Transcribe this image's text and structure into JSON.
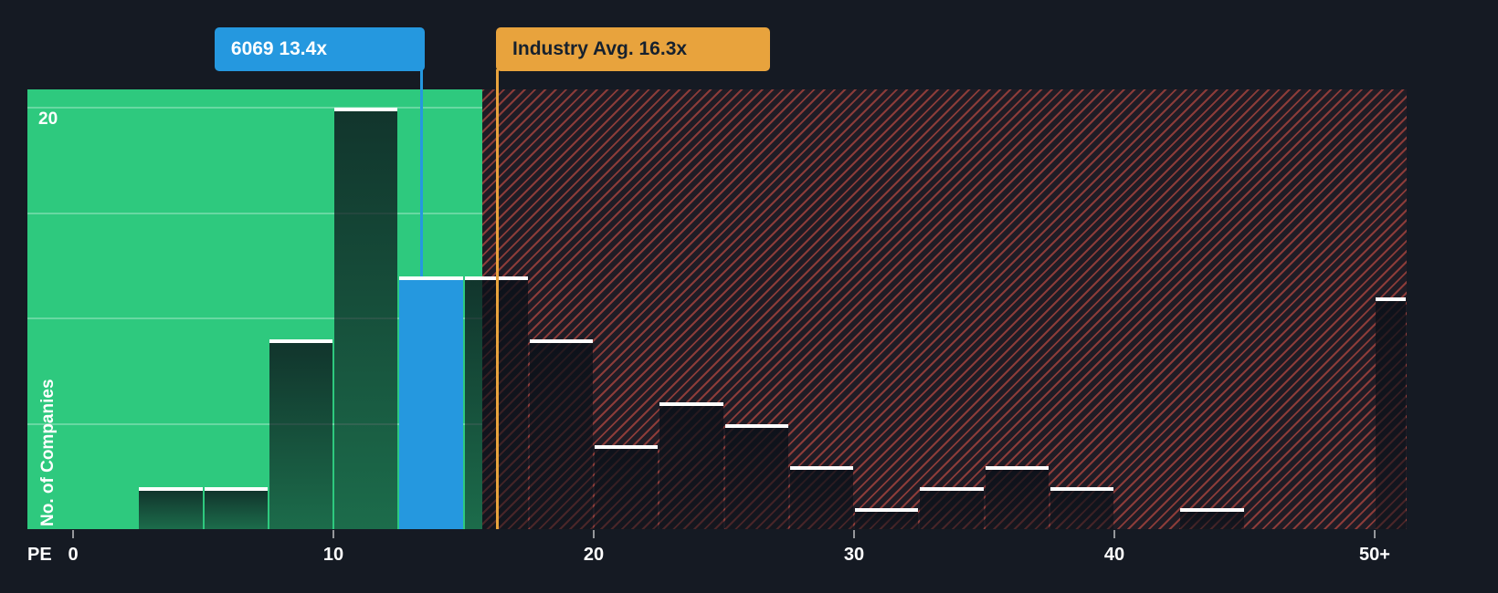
{
  "colors": {
    "background": "#151A23",
    "undervalued_green": "#2EC97E",
    "company_blue": "#2598DF",
    "industry_orange": "#E8A33D",
    "hatch_red": "#E4564A",
    "bar_top_line": "#FFFFFF",
    "tooltip_dark_text": "#16212E"
  },
  "chart_data": {
    "type": "bar",
    "xlabel": "PE",
    "ylabel": "No. of Companies",
    "x_ticks": [
      "0",
      "10",
      "20",
      "30",
      "40",
      "50+"
    ],
    "x_tick_values": [
      0,
      10,
      20,
      30,
      40,
      50
    ],
    "y_max_label": "20",
    "y_gridlines": [
      5,
      10,
      15,
      20
    ],
    "ylim": [
      0,
      21
    ],
    "xlim": [
      0,
      51
    ],
    "bucket_size": 2.5,
    "legend_position": "none",
    "grid": "horizontal-in-green-zone-only",
    "buckets": [
      {
        "start": 0,
        "count": 0
      },
      {
        "start": 2.5,
        "count": 2
      },
      {
        "start": 5,
        "count": 2
      },
      {
        "start": 7.5,
        "count": 9
      },
      {
        "start": 10,
        "count": 20
      },
      {
        "start": 12.5,
        "count": 12,
        "highlight": true
      },
      {
        "start": 15,
        "count": 12
      },
      {
        "start": 17.5,
        "count": 9
      },
      {
        "start": 20,
        "count": 4
      },
      {
        "start": 22.5,
        "count": 6
      },
      {
        "start": 25,
        "count": 5
      },
      {
        "start": 27.5,
        "count": 3
      },
      {
        "start": 30,
        "count": 1
      },
      {
        "start": 32.5,
        "count": 2
      },
      {
        "start": 35,
        "count": 3
      },
      {
        "start": 37.5,
        "count": 2
      },
      {
        "start": 40,
        "count": 0
      },
      {
        "start": 42.5,
        "count": 1
      },
      {
        "start": 45,
        "count": 0
      },
      {
        "start": 47.5,
        "count": 0
      },
      {
        "start": 50,
        "count": 11
      }
    ],
    "highlight": {
      "label": "6069 13.4x",
      "pe": 13.4
    },
    "industry_avg": {
      "label": "Industry Avg. 16.3x",
      "value": 16.3
    }
  }
}
